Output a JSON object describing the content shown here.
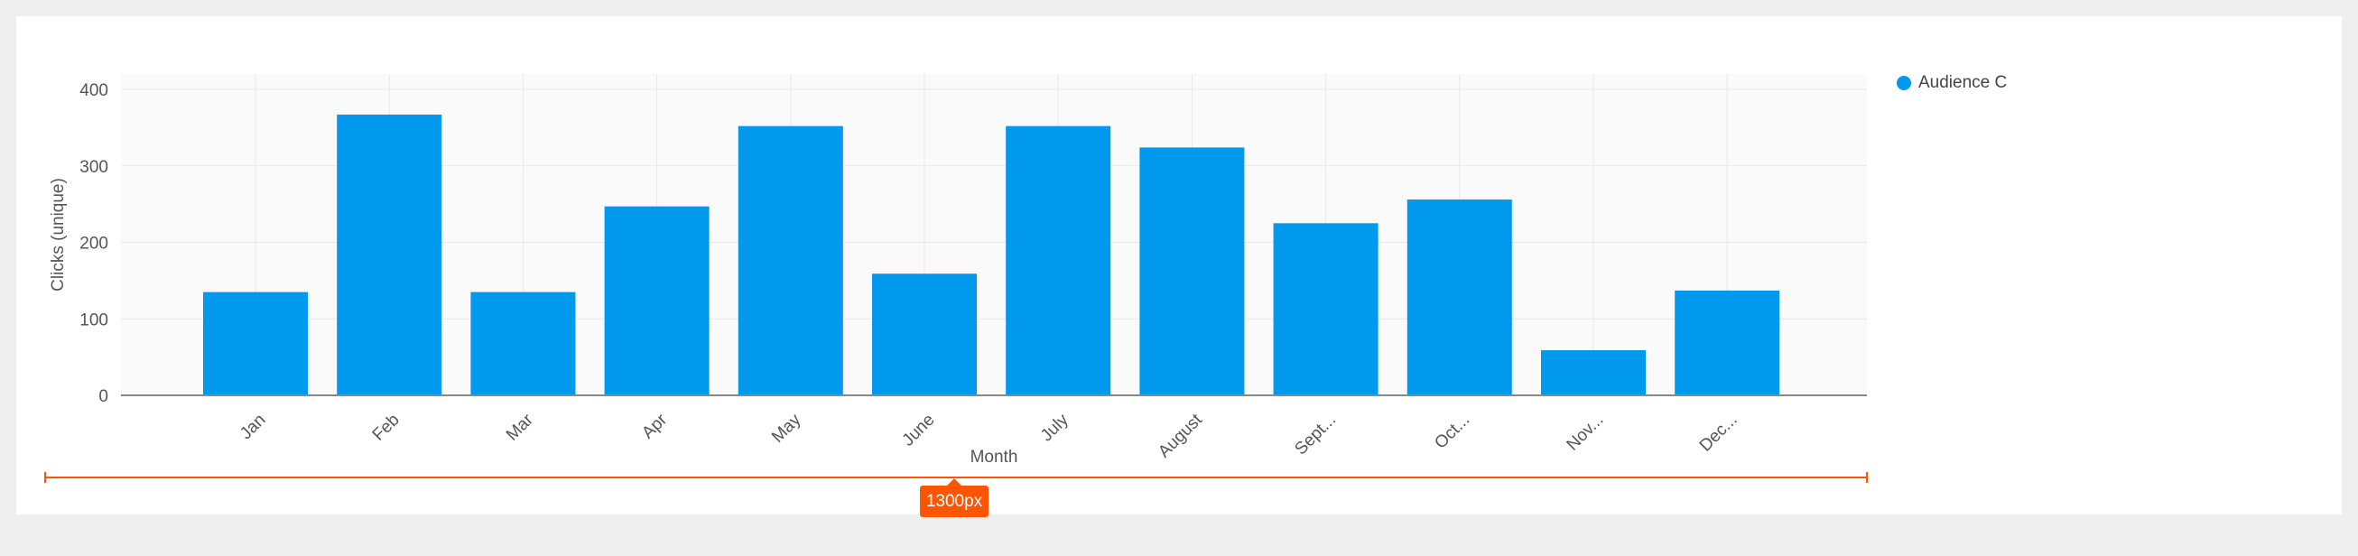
{
  "chart_data": {
    "type": "bar",
    "categories": [
      "Jan",
      "Feb",
      "Mar",
      "Apr",
      "May",
      "June",
      "July",
      "August",
      "Sept...",
      "Oct...",
      "Nov...",
      "Dec..."
    ],
    "series": [
      {
        "name": "Audience C",
        "values": [
          135,
          367,
          135,
          247,
          352,
          159,
          352,
          324,
          225,
          256,
          59,
          137
        ]
      }
    ],
    "xlabel": "Month",
    "ylabel": "Clicks (unique)",
    "ylim": [
      0,
      400
    ],
    "yticks": [
      0,
      100,
      200,
      300,
      400
    ],
    "grid": true,
    "legend_position": "top-right",
    "colors": {
      "bar": "#0099ee",
      "plot_bg": "#fafafa",
      "grid": "#e8e8e8",
      "axis": "#888888"
    }
  },
  "legend": {
    "label": "Audience C"
  },
  "width_indicator": {
    "label": "1300px",
    "color": "#ff5500"
  }
}
